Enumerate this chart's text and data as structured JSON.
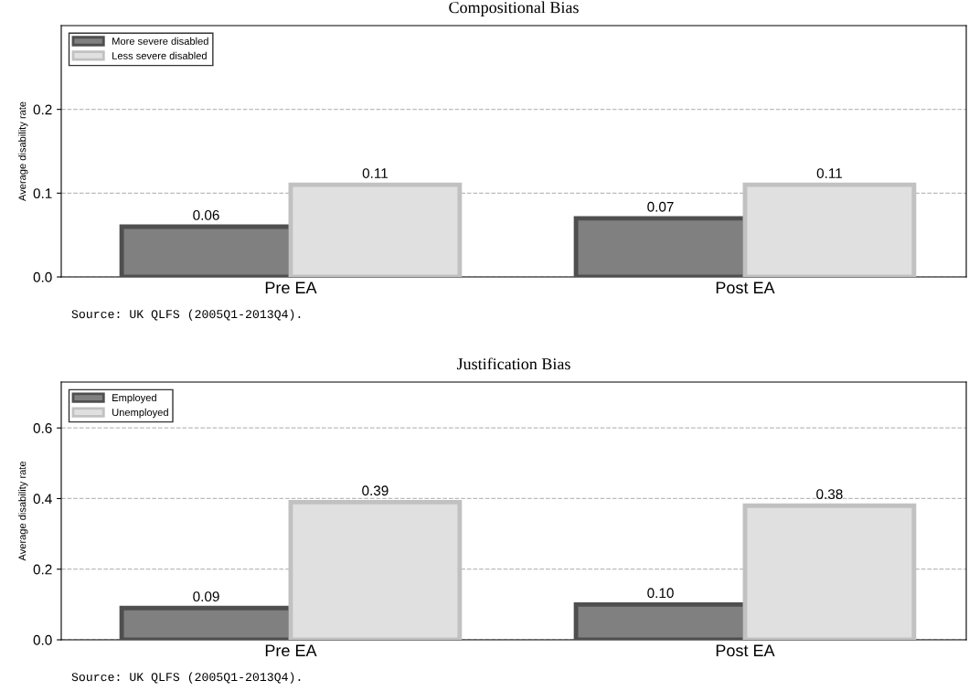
{
  "chart_data": [
    {
      "type": "bar",
      "title": "Compositional Bias",
      "ylabel": "Average disability rate",
      "categories": [
        "Pre EA",
        "Post EA"
      ],
      "series": [
        {
          "name": "More severe disabled",
          "color": "#808080",
          "values": [
            0.06,
            0.07
          ]
        },
        {
          "name": "Less severe disabled",
          "color": "#e0e0e0",
          "values": [
            0.11,
            0.11
          ]
        }
      ],
      "ylim": [
        0,
        0.3
      ],
      "yticks": [
        {
          "value": 0,
          "label": "0.0"
        },
        0.1,
        0.2
      ],
      "grid": "y",
      "legend": "top left",
      "data_labels": true,
      "annotations": [
        "Source: UK QLFS (2005Q1-2013Q4)."
      ]
    },
    {
      "type": "bar",
      "title": "Justification Bias",
      "ylabel": "Average disability rate",
      "categories": [
        "Pre EA",
        "Post EA"
      ],
      "series": [
        {
          "name": "Employed",
          "color": "#808080",
          "values": [
            0.09,
            0.1
          ],
          "value_labels": [
            "0.09",
            "0.10"
          ]
        },
        {
          "name": "Unemployed",
          "color": "#e0e0e0",
          "values": [
            0.39,
            0.38
          ],
          "value_labels": [
            "0.39",
            "0.38"
          ]
        }
      ],
      "ylim": [
        0,
        0.73
      ],
      "yticks": [
        {
          "value": 0,
          "label": "0.0"
        },
        0.2,
        0.4,
        0.6
      ],
      "grid": "y",
      "legend": "top left",
      "data_labels": true,
      "annotations": [
        "Source: UK QLFS (2005Q1-2013Q4)."
      ]
    }
  ]
}
